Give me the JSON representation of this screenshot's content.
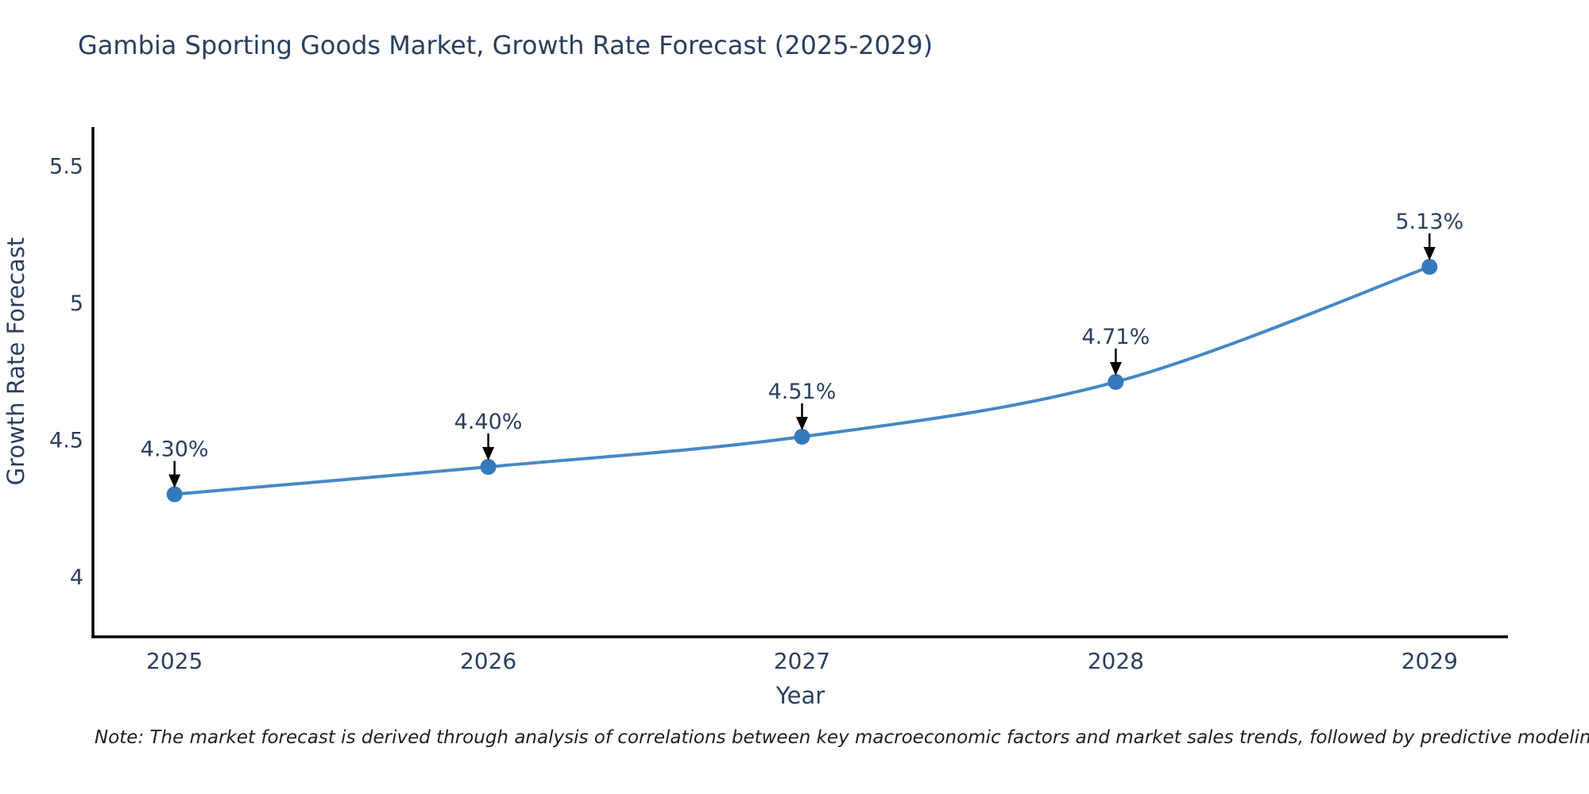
{
  "note": "Note: The market forecast is derived through analysis of correlations between key macroeconomic factors and market sales trends, followed by predictive modeling to project future sales",
  "chart_data": {
    "type": "line",
    "title": "Gambia Sporting Goods Market, Growth Rate Forecast (2025-2029)",
    "xlabel": "Year",
    "ylabel": "Growth Rate Forecast",
    "x": [
      2025,
      2026,
      2027,
      2028,
      2029
    ],
    "y": [
      4.3,
      4.4,
      4.51,
      4.71,
      5.13
    ],
    "point_labels": [
      "4.30%",
      "4.40%",
      "4.51%",
      "4.71%",
      "5.13%"
    ],
    "x_tick_labels": [
      "2025",
      "2026",
      "2027",
      "2028",
      "2029"
    ],
    "y_ticks": [
      4,
      4.5,
      5,
      5.5
    ],
    "y_tick_labels": [
      "4",
      "4.5",
      "5",
      "5.5"
    ],
    "xlim": [
      2024.74,
      2029.25
    ],
    "ylim": [
      3.78,
      5.64
    ],
    "grid": false,
    "legend": "none",
    "line_shape": "spline",
    "marker_style": "circle",
    "annotation_arrow": "down",
    "colors": {
      "line": "#4688c4",
      "marker": "#3579bd",
      "axis": "#000000",
      "arrow": "#000000",
      "text": "#2a3f5f",
      "note_text": "#1f1f1f",
      "background": "#ffffff"
    }
  }
}
